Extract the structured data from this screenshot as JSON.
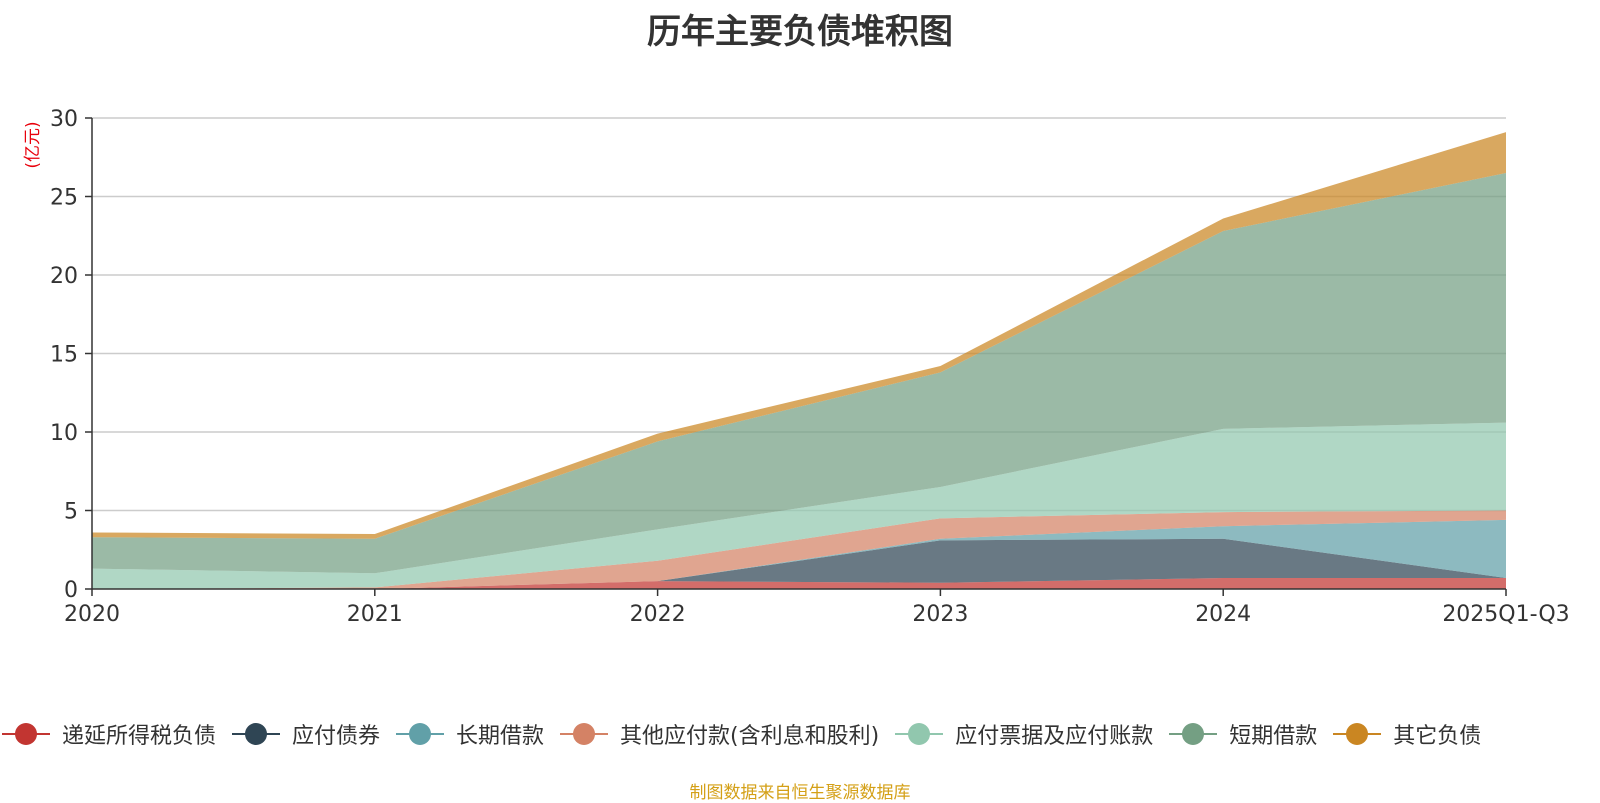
{
  "chart_data": {
    "type": "area",
    "stacked": true,
    "title": "历年主要负债堆积图",
    "ylabel": "(亿元)",
    "xlabel": "",
    "ylim": [
      0,
      30
    ],
    "yticks": [
      0,
      5,
      10,
      15,
      20,
      25,
      30
    ],
    "grid": true,
    "legend_position": "bottom",
    "categories": [
      "2020",
      "2021",
      "2022",
      "2023",
      "2024",
      "2025Q1-Q3"
    ],
    "series": [
      {
        "name": "递延所得税负债",
        "color": "#c23531",
        "values": [
          0,
          0,
          0.5,
          0.4,
          0.7,
          0.7
        ]
      },
      {
        "name": "应付债券",
        "color": "#2f4554",
        "values": [
          0,
          0,
          0,
          2.7,
          2.5,
          0
        ]
      },
      {
        "name": "长期借款",
        "color": "#61a0a8",
        "values": [
          0,
          0,
          0,
          0.1,
          0.8,
          3.7
        ]
      },
      {
        "name": "其他应付款(含利息和股利)",
        "color": "#d48265",
        "values": [
          0,
          0.1,
          1.3,
          1.3,
          0.9,
          0.6
        ]
      },
      {
        "name": "应付票据及应付账款",
        "color": "#91c7ae",
        "values": [
          1.3,
          0.9,
          2.0,
          2.0,
          5.3,
          5.6
        ]
      },
      {
        "name": "短期借款",
        "color": "#749f83",
        "values": [
          2.0,
          2.2,
          5.6,
          7.3,
          12.6,
          15.9
        ]
      },
      {
        "name": "其它负债",
        "color": "#ca8622",
        "values": [
          0.3,
          0.3,
          0.5,
          0.4,
          0.8,
          2.6
        ]
      }
    ]
  },
  "source_note": "制图数据来自恒生聚源数据库"
}
